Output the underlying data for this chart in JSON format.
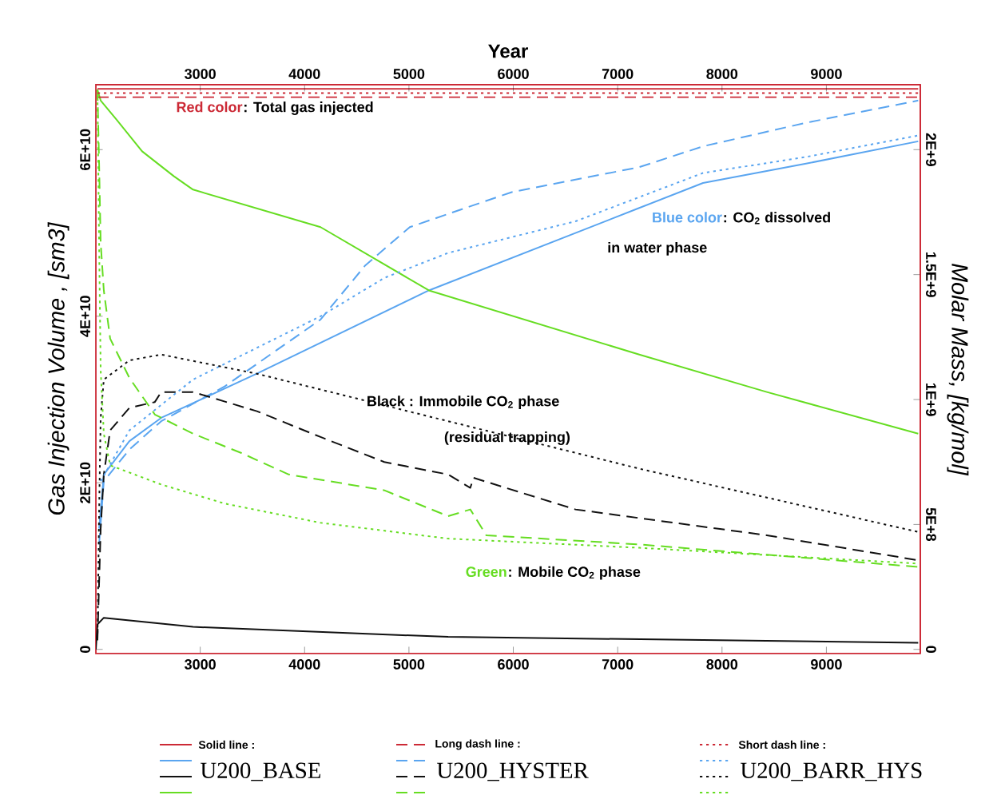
{
  "chart_data": {
    "type": "line",
    "x2label": "Year",
    "ylabel": "Gas Injection Volume , [sm3]",
    "y2label": "Molar Mass, [kg/mol]",
    "xlim": [
      2000,
      9900
    ],
    "xticks": [
      3000,
      4000,
      5000,
      6000,
      7000,
      8000,
      9000
    ],
    "x2lim": [
      2000,
      9900
    ],
    "x2ticks": [
      3000,
      4000,
      5000,
      6000,
      7000,
      8000,
      9000
    ],
    "ylim": [
      -500000000.0,
      67800000000.0
    ],
    "yticks": [
      0,
      {
        "value": 20000000000.0,
        "label": "2E+10"
      },
      {
        "value": 40000000000.0,
        "label": "4E+10"
      },
      {
        "value": 60000000000.0,
        "label": "6E+10"
      }
    ],
    "y2lim": [
      -16670000.0,
      2260000000.0
    ],
    "y2ticks": [
      0,
      {
        "value": 500000000.0,
        "label": "5E+8"
      },
      {
        "value": 1000000000.0,
        "label": "1E+9"
      },
      {
        "value": 1500000000.0,
        "label": "1.5E+9"
      },
      {
        "value": 2000000000.0,
        "label": "2E+9"
      }
    ],
    "marker": "none",
    "series": [
      {
        "color": "#cc2a36",
        "line_style": "solid",
        "x": [
          2015,
          9880
        ],
        "values": [
          67300000000.0,
          67300000000.0
        ]
      },
      {
        "color": "#5aa5f0",
        "line_style": "solid",
        "x": [
          2031,
          2076,
          2321,
          2626,
          3542,
          5191,
          7207,
          7818,
          8795,
          9880
        ],
        "values": [
          14500000000.0,
          21000000000.0,
          25000000000.0,
          27800000000.0,
          33100000000.0,
          43100000000.0,
          53000000000.0,
          56000000000.0,
          58300000000.0,
          61000000000.0
        ]
      },
      {
        "color": "#111111",
        "line_style": "solid",
        "x": [
          2000,
          2015,
          2076,
          2931,
          5375,
          9880
        ],
        "values": [
          0,
          3000000000.0,
          3800000000.0,
          2700000000.0,
          1500000000.0,
          800000000.0
        ]
      },
      {
        "color": "#66dd22",
        "line_style": "solid",
        "x": [
          2015,
          2046,
          2199,
          2443,
          2748,
          2931,
          4153,
          5191,
          7207,
          8429,
          9880
        ],
        "values": [
          67200000000.0,
          65900000000.0,
          63600000000.0,
          59800000000.0,
          56800000000.0,
          55200000000.0,
          50700000000.0,
          43100000000.0,
          35400000000.0,
          30900000000.0,
          25900000000.0
        ]
      },
      {
        "color": "#cc2a36",
        "line_style": "dashed",
        "x": [
          2015,
          9880
        ],
        "values": [
          66300000000.0,
          66300000000.0
        ]
      },
      {
        "color": "#5aa5f0",
        "line_style": "dashed",
        "x": [
          2031,
          2076,
          2321,
          2626,
          3237,
          4153,
          4581,
          5008,
          5985,
          7207,
          7818,
          8795,
          9880
        ],
        "values": [
          12600000000.0,
          20200000000.0,
          24000000000.0,
          27400000000.0,
          31600000000.0,
          39600000000.0,
          46100000000.0,
          50700000000.0,
          54900000000.0,
          57900000000.0,
          60400000000.0,
          63200000000.0,
          65900000000.0
        ]
      },
      {
        "color": "#111111",
        "line_style": "dashed",
        "x": [
          2015,
          2046,
          2076,
          2137,
          2321,
          2565,
          2626,
          2931,
          3542,
          4153,
          4764,
          5375,
          5588,
          5619,
          6596,
          8429,
          9880
        ],
        "values": [
          1100000000.0,
          14500000000.0,
          21000000000.0,
          26300000000.0,
          29000000000.0,
          29700000000.0,
          30900000000.0,
          30900000000.0,
          28600000000.0,
          25500000000.0,
          22500000000.0,
          21000000000.0,
          19400000000.0,
          20600000000.0,
          16800000000.0,
          13700000000.0,
          10700000000.0
        ]
      },
      {
        "color": "#66dd22",
        "line_style": "dashed",
        "x": [
          2015,
          2031,
          2046,
          2076,
          2137,
          2321,
          2565,
          2931,
          3390,
          3848,
          4764,
          5375,
          5588,
          5741,
          7207,
          9880
        ],
        "values": [
          67200000000.0,
          58300000000.0,
          48800000000.0,
          43100000000.0,
          37300000000.0,
          32600000000.0,
          28200000000.0,
          25900000000.0,
          23600000000.0,
          21000000000.0,
          19100000000.0,
          16000000000.0,
          16800000000.0,
          13700000000.0,
          12600000000.0,
          9900000000.0
        ]
      },
      {
        "color": "#cc2a36",
        "line_style": "dotted",
        "x": [
          2015,
          9880
        ],
        "values": [
          66800000000.0,
          66800000000.0
        ]
      },
      {
        "color": "#5aa5f0",
        "line_style": "dotted",
        "x": [
          2046,
          2321,
          2931,
          3542,
          4153,
          4764,
          5375,
          6596,
          7818,
          8795,
          9880
        ],
        "values": [
          20200000000.0,
          26300000000.0,
          32400000000.0,
          36200000000.0,
          40000000000.0,
          44600000000.0,
          47600000000.0,
          51400000000.0,
          57200000000.0,
          59100000000.0,
          61700000000.0
        ]
      },
      {
        "color": "#111111",
        "line_style": "dotted",
        "x": [
          2015,
          2031,
          2046,
          2076,
          2321,
          2626,
          3542,
          4764,
          5985,
          7207,
          9880
        ],
        "values": [
          1100000000.0,
          16400000000.0,
          27800000000.0,
          32400000000.0,
          34700000000.0,
          35400000000.0,
          33100000000.0,
          29300000000.0,
          25500000000.0,
          21700000000.0,
          14100000000.0
        ]
      },
      {
        "color": "#66dd22",
        "line_style": "dotted",
        "x": [
          2015,
          2031,
          2046,
          2076,
          2137,
          2626,
          3237,
          4153,
          5375,
          7207,
          9880
        ],
        "values": [
          67200000000.0,
          48800000000.0,
          33500000000.0,
          25900000000.0,
          22100000000.0,
          19800000000.0,
          17500000000.0,
          15200000000.0,
          13300000000.0,
          12200000000.0,
          10300000000.0
        ]
      }
    ],
    "annotations": [
      "Red color",
      ": Total gas injected",
      "Blue color",
      ": CO$_{2}$ dissolved",
      "in water phase",
      "Black : Immobile CO$_{2}$ phase",
      "(residual trapping)",
      "Green",
      ": Mobile CO$_{2}$ phase",
      "Solid line :",
      "Long dash line :",
      "Short dash line :",
      "U200_BASE",
      "U200_HYSTER",
      "U200_BARR_HYS"
    ]
  }
}
